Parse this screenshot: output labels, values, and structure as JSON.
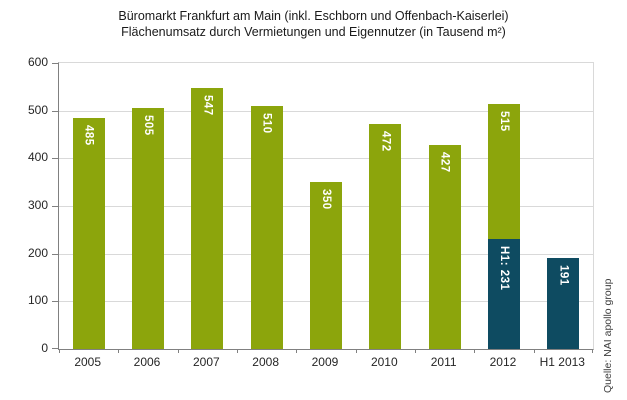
{
  "title": {
    "line1": "Büromarkt Frankfurt am Main (inkl. Eschborn und Offenbach-Kaiserlei)",
    "line2": "Flächenumsatz durch Vermietungen und Eigennutzer (in Tausend m²)"
  },
  "source_label": "Quelle: NAI apollo group",
  "colors": {
    "bar_green": "#8CA50C",
    "bar_blue": "#0E4B61",
    "grid": "#D9D9D9",
    "axis": "#808080",
    "bar_label_text": "#FFFFFF",
    "text": "#262626"
  },
  "chart_data": {
    "type": "bar",
    "title": "Büromarkt Frankfurt am Main (inkl. Eschborn und Offenbach-Kaiserlei) — Flächenumsatz durch Vermietungen und Eigennutzer (in Tausend m²)",
    "xlabel": "",
    "ylabel": "",
    "unit": "Tausend m²",
    "ylim": [
      0,
      600
    ],
    "yticks": [
      0,
      100,
      200,
      300,
      400,
      500,
      600
    ],
    "grid": true,
    "legend": "none",
    "categories": [
      "2005",
      "2006",
      "2007",
      "2008",
      "2009",
      "2010",
      "2011",
      "2012",
      "H1 2013"
    ],
    "bars": [
      {
        "category": "2005",
        "value": 485,
        "label": "485",
        "color": "green"
      },
      {
        "category": "2006",
        "value": 505,
        "label": "505",
        "color": "green"
      },
      {
        "category": "2007",
        "value": 547,
        "label": "547",
        "color": "green"
      },
      {
        "category": "2008",
        "value": 510,
        "label": "510",
        "color": "green"
      },
      {
        "category": "2009",
        "value": 350,
        "label": "350",
        "color": "green"
      },
      {
        "category": "2010",
        "value": 472,
        "label": "472",
        "color": "green"
      },
      {
        "category": "2011",
        "value": 427,
        "label": "427",
        "color": "green"
      },
      {
        "category": "2012",
        "value": 515,
        "label": "515",
        "color": "green",
        "h1_value": 231,
        "h1_label": "H1: 231"
      },
      {
        "category": "H1 2013",
        "value": 191,
        "label": "191",
        "color": "blue"
      }
    ]
  }
}
